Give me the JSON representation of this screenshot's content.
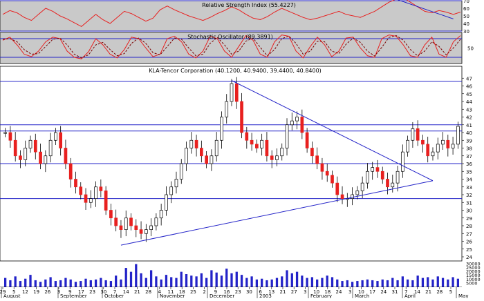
{
  "chart_data": [
    {
      "type": "line",
      "panel": "rsi",
      "title": "Relative Strength Index (55.4227)",
      "ylim": [
        30,
        70
      ],
      "y_ticks": [
        30,
        40,
        50,
        60,
        70
      ],
      "reference_lines": [
        30,
        70
      ],
      "series": [
        {
          "color": "#e8201f",
          "values": [
            52,
            57,
            54,
            48,
            44,
            52,
            60,
            56,
            50,
            46,
            41,
            36,
            44,
            52,
            45,
            40,
            48,
            56,
            53,
            48,
            43,
            47,
            58,
            63,
            58,
            54,
            50,
            47,
            44,
            48,
            53,
            57,
            62,
            58,
            52,
            47,
            45,
            49,
            55,
            60,
            56,
            52,
            48,
            45,
            47,
            50,
            53,
            56,
            52,
            50,
            48,
            52,
            56,
            62,
            68,
            72,
            74,
            68,
            62,
            56,
            54,
            57,
            55,
            52,
            55
          ]
        }
      ],
      "trendline": {
        "color": "#2323c8",
        "x": [
          55,
          63
        ],
        "y": [
          72,
          46
        ]
      }
    },
    {
      "type": "line",
      "panel": "stochastic",
      "title": "Stochastic Oscillator (89.3891)",
      "ylim": [
        0,
        100
      ],
      "y_ticks": [
        50
      ],
      "reference_lines": [
        20,
        80
      ],
      "series": [
        {
          "color": "#e8201f",
          "style": "solid",
          "values": [
            75,
            85,
            60,
            30,
            22,
            40,
            70,
            85,
            80,
            40,
            20,
            15,
            38,
            80,
            60,
            30,
            18,
            45,
            85,
            80,
            50,
            22,
            30,
            80,
            88,
            70,
            30,
            18,
            40,
            88,
            80,
            40,
            20,
            55,
            90,
            75,
            30,
            20,
            70,
            92,
            88,
            40,
            18,
            55,
            85,
            60,
            22,
            40,
            82,
            85,
            50,
            25,
            20,
            80,
            92,
            88,
            60,
            25,
            20,
            60,
            85,
            30,
            20,
            70,
            90
          ]
        },
        {
          "color": "#7a0000",
          "style": "dashed",
          "values": [
            78,
            80,
            70,
            45,
            30,
            32,
            55,
            78,
            82,
            60,
            30,
            18,
            28,
            60,
            68,
            45,
            25,
            32,
            65,
            82,
            65,
            35,
            28,
            55,
            82,
            78,
            50,
            25,
            30,
            65,
            84,
            60,
            30,
            40,
            72,
            82,
            52,
            25,
            45,
            80,
            88,
            65,
            30,
            40,
            72,
            70,
            40,
            32,
            62,
            82,
            68,
            40,
            24,
            52,
            84,
            90,
            75,
            45,
            25,
            40,
            70,
            55,
            28,
            50,
            78
          ]
        }
      ]
    },
    {
      "type": "candlestick",
      "panel": "price",
      "title": "KLA-Tencor Corporation (40.1200, 40.9400, 39.4400, 40.8400)",
      "ylim": [
        24,
        48
      ],
      "y_ticks": [
        24,
        25,
        26,
        27,
        28,
        29,
        30,
        31,
        32,
        33,
        34,
        35,
        36,
        37,
        38,
        39,
        40,
        41,
        42,
        43,
        44,
        45,
        46,
        47
      ],
      "horizontal_lines": [
        31.5,
        36,
        40.2,
        41,
        46.6
      ],
      "x_ticks": [
        "29",
        "5",
        "12",
        "19",
        "26",
        "3",
        "9",
        "17",
        "23",
        "30",
        "7",
        "14",
        "21",
        "28",
        "4",
        "11",
        "18",
        "25",
        "2",
        "9",
        "16",
        "23",
        "30",
        "6",
        "13",
        "21",
        "27",
        "3",
        "10",
        "18",
        "24",
        "3",
        "10",
        "17",
        "24",
        "31",
        "7",
        "14",
        "21",
        "28",
        "5"
      ],
      "months": [
        "August",
        "September",
        "October",
        "November",
        "December",
        "2003",
        "February",
        "March",
        "April",
        "May"
      ],
      "close": [
        40,
        39,
        37,
        36.5,
        38,
        39,
        37.5,
        36,
        37,
        39,
        40,
        38,
        36,
        34,
        33,
        32,
        31,
        31.5,
        33,
        32.5,
        30,
        29,
        28,
        27.5,
        29,
        28,
        27.5,
        27,
        27.5,
        28,
        29,
        30,
        32,
        33,
        34,
        36,
        38,
        39,
        38,
        37,
        36,
        37,
        39,
        42,
        44,
        46.3,
        44,
        40,
        39,
        38.5,
        38,
        39,
        37,
        36.5,
        37,
        38,
        41,
        41.5,
        42,
        40,
        38,
        37,
        36,
        35,
        34.5,
        33.5,
        32,
        31.5,
        31.5,
        32,
        32.5,
        33.5,
        35,
        35.5,
        35,
        34,
        33,
        33.5,
        35,
        37.5,
        39,
        40.5,
        39,
        38.5,
        37,
        37.5,
        38.5,
        39,
        38,
        38.5,
        40.8
      ],
      "volume": [
        12000,
        9000,
        14000,
        8000,
        11000,
        16000,
        9000,
        7000,
        10000,
        13000,
        8000,
        9000,
        12000,
        10000,
        7000,
        8000,
        11000,
        9000,
        10000,
        12000,
        9000,
        8000,
        15000,
        10000,
        25000,
        20000,
        30000,
        18000,
        12000,
        22000,
        14000,
        10000,
        16000,
        13000,
        12000,
        20000,
        17000,
        15000,
        14000,
        18000,
        12000,
        22000,
        19000,
        15000,
        24000,
        18000,
        20000,
        16000,
        12000,
        14000,
        10000,
        11000,
        9000,
        10000,
        12000,
        14000,
        22000,
        18000,
        20000,
        15000,
        12000,
        13000,
        10000,
        12000,
        15000,
        13000,
        10000,
        8000,
        9000,
        7000,
        8000,
        9000,
        10000,
        9000,
        8000,
        10000,
        9000,
        12000,
        9000,
        14000,
        10000,
        9000,
        15000,
        12000,
        13000,
        10000,
        14000,
        12000,
        10000,
        13000,
        11000
      ],
      "volume_ticks": [
        30000,
        25000,
        20000,
        15000,
        10000,
        5000
      ],
      "trendlines": [
        {
          "color": "#2323c8",
          "from": [
            23,
            25.5
          ],
          "to": [
            85,
            33.8
          ]
        },
        {
          "color": "#2323c8",
          "from": [
            45,
            46.7
          ],
          "to": [
            85,
            33.8
          ]
        }
      ]
    }
  ]
}
